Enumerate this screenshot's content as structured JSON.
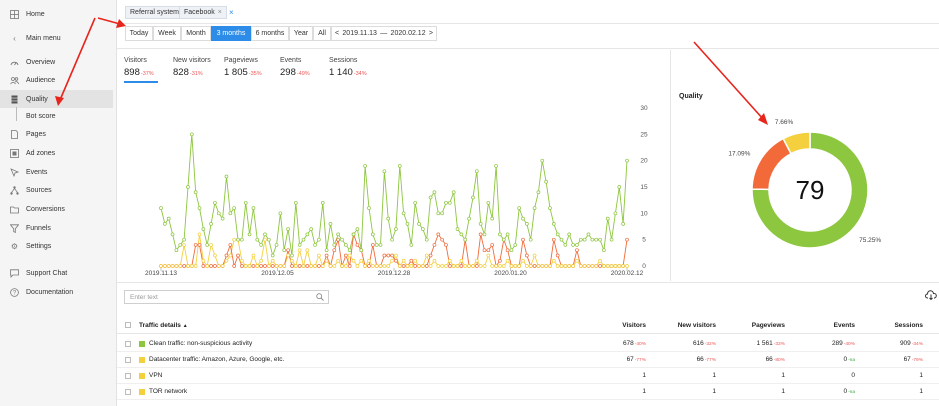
{
  "sidebar": {
    "items": [
      {
        "label": "Home",
        "icon": "grid-icon"
      },
      {
        "label": "Main menu",
        "icon": "chevron-left-icon"
      },
      {
        "label": "Overview",
        "icon": "speed-icon"
      },
      {
        "label": "Audience",
        "icon": "people-icon"
      },
      {
        "label": "Quality",
        "icon": "layers-icon"
      },
      {
        "label": "Bot score",
        "icon": ""
      },
      {
        "label": "Pages",
        "icon": "page-icon"
      },
      {
        "label": "Ad zones",
        "icon": "adzone-icon"
      },
      {
        "label": "Events",
        "icon": "events-icon"
      },
      {
        "label": "Sources",
        "icon": "sources-icon"
      },
      {
        "label": "Conversions",
        "icon": "folder-icon"
      },
      {
        "label": "Funnels",
        "icon": "funnel-icon"
      },
      {
        "label": "Settings",
        "icon": "gear-icon"
      },
      {
        "label": "Support Chat",
        "icon": "chat-icon"
      },
      {
        "label": "Documentation",
        "icon": "help-icon"
      }
    ]
  },
  "filters": {
    "crumbs": [
      "Referral system",
      "Facebook"
    ],
    "close": "×"
  },
  "period": {
    "buttons": [
      "Today",
      "Week",
      "Month",
      "3 months",
      "6 months",
      "Year",
      "All"
    ],
    "active": "3 months",
    "range_start": "2019.11.13",
    "range_sep": "—",
    "range_end": "2020.02.12",
    "prev": "<",
    "next": ">"
  },
  "metrics": [
    {
      "label": "Visitors",
      "value": "898",
      "change": "-37%"
    },
    {
      "label": "New visitors",
      "value": "828",
      "change": "-31%"
    },
    {
      "label": "Pageviews",
      "value": "1 805",
      "change": "-35%"
    },
    {
      "label": "Events",
      "value": "298",
      "change": "-49%"
    },
    {
      "label": "Sessions",
      "value": "1 140",
      "change": "-34%"
    }
  ],
  "chart_data": [
    {
      "type": "line",
      "x_ticks": [
        "2019.11.13",
        "2019.12.05",
        "2019.12.28",
        "2020.01.20",
        "2020.02.12"
      ],
      "ylim": [
        0,
        30
      ],
      "y_ticks": [
        "0",
        "5",
        "10",
        "15",
        "20",
        "25",
        "30"
      ],
      "series": [
        {
          "color": "#8dc63f",
          "values": [
            11,
            8,
            9,
            6,
            3,
            4,
            5,
            15,
            25,
            14,
            11,
            7,
            4,
            8,
            12,
            10,
            9,
            17,
            10,
            11,
            5,
            5,
            12,
            6,
            11,
            5,
            4,
            6,
            5,
            2,
            4,
            10,
            3,
            7,
            2,
            12,
            4,
            5,
            6,
            7,
            4,
            5,
            12,
            3,
            8,
            4,
            6,
            5,
            4,
            3,
            6,
            7,
            3,
            19,
            11,
            6,
            4,
            4,
            18,
            9,
            5,
            7,
            19,
            10,
            8,
            4,
            12,
            8,
            7,
            5,
            13,
            14,
            10,
            10,
            12,
            12,
            14,
            7,
            6,
            5,
            9,
            13,
            18,
            8,
            6,
            12,
            9,
            19,
            6,
            5,
            6,
            3,
            4,
            11,
            9,
            8,
            5,
            11,
            14,
            20,
            16,
            11,
            8,
            6,
            5,
            4,
            6,
            4,
            4,
            5,
            5,
            6,
            5,
            5,
            5,
            3,
            9,
            5,
            10,
            15,
            8,
            20
          ]
        },
        {
          "color": "#f4d03f",
          "values": [
            0,
            0,
            0,
            0,
            0,
            0,
            4,
            0,
            0,
            0,
            6,
            1,
            0,
            4,
            2,
            0,
            0,
            1,
            2,
            5,
            5,
            1,
            0,
            0,
            2,
            0,
            1,
            5,
            0,
            1,
            0,
            0,
            0,
            2,
            1,
            0,
            3,
            0,
            3,
            0,
            0,
            2,
            0,
            1,
            0,
            0,
            1,
            0,
            0,
            2,
            1,
            0,
            1,
            0,
            1,
            0,
            0,
            0,
            0,
            0,
            1,
            2,
            0,
            1,
            0,
            0,
            1,
            0,
            0,
            2,
            0,
            1,
            0,
            0,
            0,
            1,
            0,
            0,
            1,
            0,
            0,
            0,
            1,
            0,
            0,
            2,
            0,
            0,
            0,
            0,
            1,
            0,
            0,
            0,
            1,
            0,
            0,
            2,
            0,
            0,
            0,
            0,
            1,
            0,
            0,
            0,
            0,
            0,
            1,
            0,
            0,
            0,
            0,
            0,
            1,
            0,
            0,
            0,
            0,
            0,
            0,
            0
          ]
        },
        {
          "color": "#f26a3a",
          "values": [
            0,
            0,
            0,
            0,
            0,
            0,
            0,
            0,
            0,
            4,
            4,
            0,
            0,
            0,
            0,
            0,
            0,
            2,
            4,
            0,
            2,
            0,
            0,
            0,
            0,
            0,
            0,
            0,
            0,
            0,
            0,
            0,
            0,
            3,
            0,
            0,
            0,
            0,
            0,
            0,
            0,
            0,
            0,
            2,
            0,
            3,
            5,
            0,
            2,
            0,
            6,
            4,
            3,
            0,
            0,
            4,
            0,
            0,
            2,
            2,
            2,
            1,
            0,
            0,
            0,
            1,
            0,
            0,
            0,
            0,
            2,
            4,
            6,
            5,
            4,
            0,
            0,
            0,
            0,
            5,
            0,
            0,
            0,
            6,
            3,
            3,
            4,
            0,
            1,
            5,
            3,
            0,
            0,
            0,
            5,
            2,
            0,
            0,
            0,
            0,
            0,
            0,
            5,
            2,
            0,
            0,
            0,
            0,
            3,
            0,
            0,
            0,
            0,
            0,
            0,
            0,
            0,
            0,
            0,
            0,
            0,
            5
          ]
        }
      ]
    },
    {
      "type": "pie",
      "center_value": "79",
      "slices": [
        {
          "label": "75.25%",
          "value": 75.25,
          "color": "#8dc63f"
        },
        {
          "label": "17.09%",
          "value": 17.09,
          "color": "#f26a3a"
        },
        {
          "label": "7.66%",
          "value": 7.66,
          "color": "#f4d03f"
        }
      ]
    }
  ],
  "quality": {
    "title": "Quality"
  },
  "table": {
    "search_placeholder": "Enter text",
    "headers": [
      "Traffic details",
      "Visitors",
      "New visitors",
      "Pageviews",
      "Events",
      "Sessions"
    ],
    "sort_mark": "▲",
    "rows": [
      {
        "color": "#8dc63f",
        "label": "Clean traffic: non-suspicious activity",
        "visitors": "678",
        "v_pct": "-40%",
        "new": "616",
        "n_pct": "-32%",
        "pageviews": "1 561",
        "p_pct": "-33%",
        "events": "289",
        "e_pct": "-40%",
        "sessions": "909",
        "s_pct": "-34%"
      },
      {
        "color": "#f4d03f",
        "label": "Datacenter traffic: Amazon, Azure, Google, etc.",
        "visitors": "67",
        "v_pct": "-77%",
        "new": "66",
        "n_pct": "-77%",
        "pageviews": "66",
        "p_pct": "-80%",
        "events": "0",
        "e_pct": "-na",
        "sessions": "67",
        "s_pct": "-79%"
      },
      {
        "color": "#f4d03f",
        "label": "VPN",
        "visitors": "1",
        "v_pct": "",
        "new": "1",
        "n_pct": "",
        "pageviews": "1",
        "p_pct": "",
        "events": "0",
        "e_pct": "",
        "sessions": "1",
        "s_pct": ""
      },
      {
        "color": "#f4d03f",
        "label": "TOR network",
        "visitors": "1",
        "v_pct": "",
        "new": "1",
        "n_pct": "",
        "pageviews": "1",
        "p_pct": "",
        "events": "0",
        "e_pct": "-na",
        "sessions": "1",
        "s_pct": ""
      }
    ]
  }
}
